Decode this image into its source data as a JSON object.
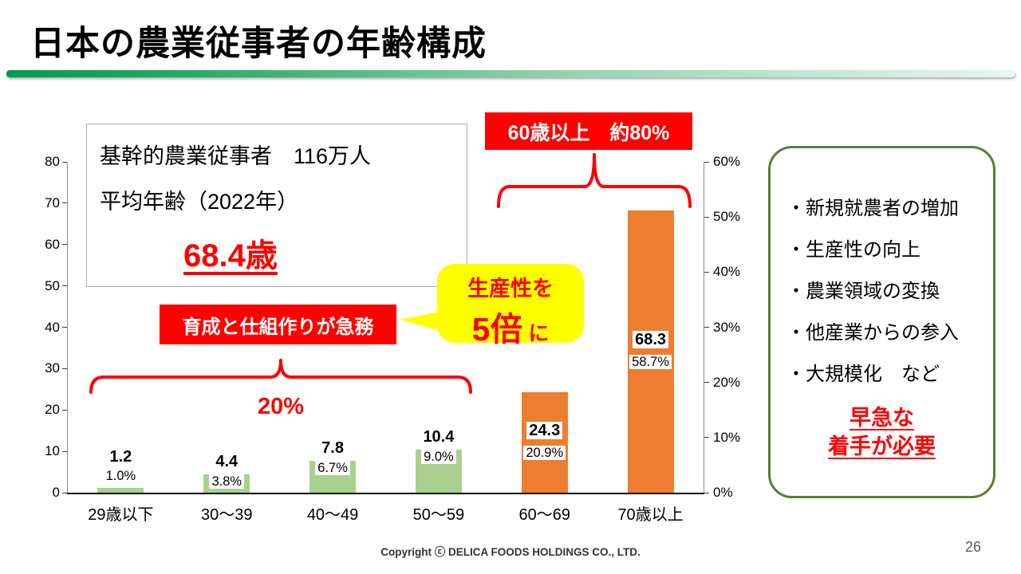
{
  "slide": {
    "title": "日本の農業従事者の年齢構成",
    "page_number": "26",
    "copyright": "Copyright ⓒ DELICA FOODS HOLDINGS CO., LTD."
  },
  "chart_data": {
    "type": "bar",
    "categories": [
      "29歳以下",
      "30〜39",
      "40〜49",
      "50〜59",
      "60〜69",
      "70歳以上"
    ],
    "values": [
      1.2,
      4.4,
      7.8,
      10.4,
      24.3,
      68.3
    ],
    "percentages": [
      1.0,
      3.8,
      6.7,
      9.0,
      20.9,
      58.7
    ],
    "value_labels": [
      "1.2",
      "4.4",
      "7.8",
      "10.4",
      "24.3",
      "68.3"
    ],
    "pct_labels": [
      "1.0%",
      "3.8%",
      "6.7%",
      "9.0%",
      "20.9%",
      "58.7%"
    ],
    "left_axis": {
      "min": 0,
      "max": 80,
      "ticks": [
        "80",
        "70",
        "60",
        "50",
        "40",
        "30",
        "20",
        "10",
        "0"
      ]
    },
    "right_axis": {
      "min": "0%",
      "max": "60%",
      "ticks": [
        "60%",
        "50%",
        "40%",
        "30%",
        "20%",
        "10%",
        "0%"
      ]
    },
    "colors": {
      "young_bars": "#a9d18e",
      "old_bars": "#ed7d31"
    },
    "legend": "off",
    "grid": "off"
  },
  "annotations": {
    "info_box": {
      "line1": "基幹的農業従事者　116万人",
      "line2": "平均年齢（2022年）",
      "highlight": "68.4歳"
    },
    "top_label": "60歳以上　約80%",
    "mid_label": "育成と仕組作りが急務",
    "bubble": {
      "line1": "生産性を",
      "big": "5倍",
      "suffix": "に"
    },
    "bottom_bracket_label": "20%"
  },
  "side_panel": {
    "items": [
      "・新規就農者の増加",
      "・生産性の向上",
      "・農業領域の変換",
      "・他産業からの参入",
      "・大規模化　など"
    ],
    "urgent": [
      "早急な",
      "着手が必要"
    ]
  }
}
